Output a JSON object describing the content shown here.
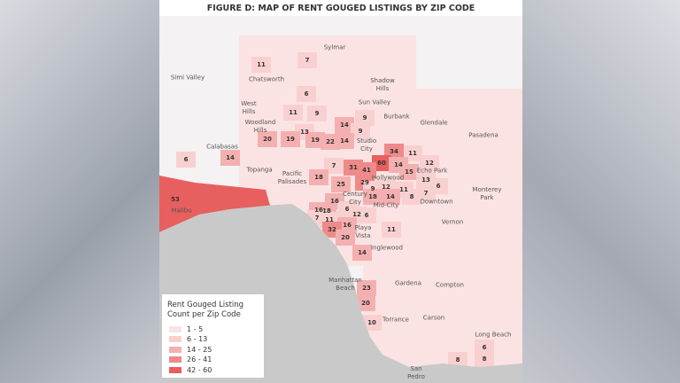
{
  "title": "FIGURE D: MAP OF RENT GOUGED LISTINGS BY ZIP CODE",
  "places": [
    "Sylmar",
    "Simi Valley",
    "Chatsworth",
    "Shadow\nHills",
    "West\nHills",
    "Sun Valley",
    "Burbank",
    "Glendale",
    "Woodland\nHills",
    "Pasadena",
    "Calabasas",
    "Studio\nCity",
    "Topanga",
    "Pacific\nPalisades",
    "Hollywood",
    "Echo Park",
    "Monterey\nPark",
    "Century\nCity",
    "Mid-City",
    "Downtown",
    "Malibu",
    "Vernon",
    "Playa\nVista",
    "Inglewood",
    "Manhattan\nBeach",
    "Gardena",
    "Compton",
    "Torrance",
    "Carson",
    "Long Beach",
    "San\nPedro"
  ],
  "zip_counts": [
    11,
    7,
    6,
    11,
    9,
    14,
    9,
    9,
    13,
    20,
    19,
    19,
    22,
    14,
    11,
    34,
    6,
    14,
    7,
    31,
    60,
    14,
    15,
    41,
    12,
    18,
    13,
    29,
    12,
    9,
    6,
    25,
    11,
    18,
    14,
    8,
    7,
    53,
    16,
    6,
    16,
    18,
    12,
    6,
    7,
    11,
    16,
    32,
    11,
    20,
    14,
    23,
    20,
    10,
    6,
    8,
    8
  ],
  "legend": {
    "title_line1": "Rent Gouged Listing",
    "title_line2": "Count per Zip Code",
    "bins": [
      {
        "label": "1 - 5",
        "color": "#fbe3e3"
      },
      {
        "label": "6 - 13",
        "color": "#f9d0d0"
      },
      {
        "label": "14 - 25",
        "color": "#f4b0b0"
      },
      {
        "label": "26 - 41",
        "color": "#ef8a8a"
      },
      {
        "label": "42 - 60",
        "color": "#e85f5f"
      }
    ]
  },
  "colors": {
    "ocean": "#c9c9c9",
    "land": "#f4f0f0"
  }
}
